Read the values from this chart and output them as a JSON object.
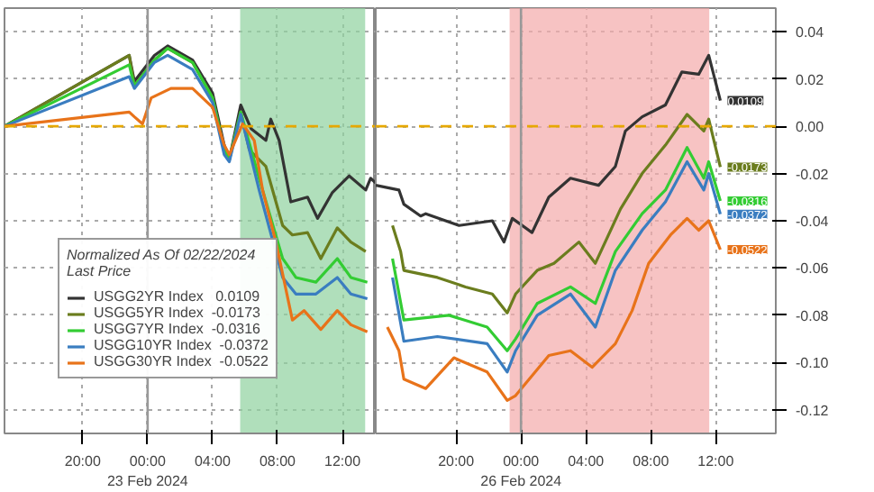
{
  "chart_data": [
    {
      "type": "line",
      "legend_title": "Normalized As Of 02/22/2024\nLast Price",
      "series": [
        {
          "name": "USGG2YR Index   0.0109",
          "color": "#333333",
          "x": [
            "2024-02-22T15:11",
            "2024-02-22T22:52",
            "2024-02-22T23:11",
            "2024-02-23T00:25",
            "2024-02-23T01:14",
            "2024-02-23T02:46",
            "2024-02-23T04:00",
            "2024-02-23T04:43",
            "2024-02-23T05:02",
            "2024-02-23T05:44",
            "2024-02-23T06:22",
            "2024-02-23T07:17",
            "2024-02-23T07:35",
            "2024-02-23T08:06",
            "2024-02-23T08:49",
            "2024-02-23T09:51",
            "2024-02-23T10:28",
            "2024-02-23T11:23",
            "2024-02-23T12:25",
            "2024-02-23T13:26",
            "2024-02-23T13:44",
            "2024-02-23T14:03"
          ],
          "values": [
            0,
            0.03,
            0.019,
            0.03,
            0.034,
            0.028,
            0.014,
            -0.008,
            -0.014,
            0.009,
            -0.001,
            -0.006,
            0.003,
            -0.006,
            -0.032,
            -0.03,
            -0.039,
            -0.028,
            -0.021,
            -0.027,
            -0.022,
            -0.024
          ]
        },
        {
          "name": "USGG5YR Index  -0.0173",
          "color": "#6b7d1e",
          "x": [
            "2024-02-22T15:11",
            "2024-02-22T22:52",
            "2024-02-22T23:11",
            "2024-02-23T00:25",
            "2024-02-23T01:14",
            "2024-02-23T02:46",
            "2024-02-23T04:00",
            "2024-02-23T04:43",
            "2024-02-23T05:02",
            "2024-02-23T05:44",
            "2024-02-23T06:16",
            "2024-02-23T07:17",
            "2024-02-23T08:19",
            "2024-02-23T08:55",
            "2024-02-23T09:51",
            "2024-02-23T10:40",
            "2024-02-23T11:41",
            "2024-02-23T12:31",
            "2024-02-23T13:26"
          ],
          "values": [
            0,
            0.03,
            0.017,
            0.028,
            0.033,
            0.027,
            0.012,
            -0.01,
            -0.014,
            0.006,
            -0.01,
            -0.017,
            -0.042,
            -0.046,
            -0.045,
            -0.056,
            -0.043,
            -0.049,
            -0.053
          ]
        },
        {
          "name": "USGG7YR Index  -0.0316",
          "color": "#33cc33",
          "x": [
            "2024-02-22T15:11",
            "2024-02-22T22:52",
            "2024-02-22T23:11",
            "2024-02-23T00:25",
            "2024-02-23T01:14",
            "2024-02-23T02:46",
            "2024-02-23T04:00",
            "2024-02-23T04:43",
            "2024-02-23T05:02",
            "2024-02-23T05:44",
            "2024-02-23T06:52",
            "2024-02-23T08:19",
            "2024-02-23T09:08",
            "2024-02-23T10:22",
            "2024-02-23T11:41",
            "2024-02-23T12:31",
            "2024-02-23T13:32"
          ],
          "values": [
            0,
            0.026,
            0.017,
            0.028,
            0.033,
            0.027,
            0.012,
            -0.01,
            -0.014,
            0.006,
            -0.022,
            -0.056,
            -0.064,
            -0.066,
            -0.056,
            -0.064,
            -0.066
          ]
        },
        {
          "name": "USGG10YR Index  -0.0372",
          "color": "#3a7dc0",
          "x": [
            "2024-02-22T15:11",
            "2024-02-22T22:52",
            "2024-02-22T23:11",
            "2024-02-23T00:25",
            "2024-02-23T01:14",
            "2024-02-23T02:46",
            "2024-02-23T04:00",
            "2024-02-23T04:43",
            "2024-02-23T05:02",
            "2024-02-23T05:44",
            "2024-02-23T06:52",
            "2024-02-23T08:19",
            "2024-02-23T09:08",
            "2024-02-23T10:22",
            "2024-02-23T11:41",
            "2024-02-23T12:31",
            "2024-02-23T13:32"
          ],
          "values": [
            0,
            0.021,
            0.016,
            0.027,
            0.03,
            0.024,
            0.01,
            -0.012,
            -0.015,
            0.005,
            -0.027,
            -0.064,
            -0.071,
            -0.071,
            -0.064,
            -0.071,
            -0.073
          ]
        },
        {
          "name": "USGG30YR Index  -0.0522",
          "color": "#e8731a",
          "x": [
            "2024-02-22T15:11",
            "2024-02-22T22:52",
            "2024-02-22T23:11",
            "2024-02-22T23:41",
            "2024-02-23T00:13",
            "2024-02-23T01:26",
            "2024-02-23T02:46",
            "2024-02-23T04:00",
            "2024-02-23T04:43",
            "2024-02-23T05:02",
            "2024-02-23T05:51",
            "2024-02-23T06:34",
            "2024-02-23T07:05",
            "2024-02-23T07:54",
            "2024-02-23T08:55",
            "2024-02-23T09:38",
            "2024-02-23T10:40",
            "2024-02-23T11:41",
            "2024-02-23T12:31",
            "2024-02-23T13:32"
          ],
          "values": [
            0,
            0.006,
            0.004,
            0.001,
            0.012,
            0.016,
            0.016,
            0.008,
            -0.008,
            -0.012,
            0.001,
            -0.006,
            -0.027,
            -0.049,
            -0.082,
            -0.078,
            -0.086,
            -0.078,
            -0.084,
            -0.087
          ]
        }
      ],
      "xlim": [
        "2024-02-22T15:11",
        "2024-02-23T14:03"
      ],
      "xticks": [
        {
          "value": "2024-02-22T20:00",
          "label": "20:00"
        },
        {
          "value": "2024-02-23T00:00",
          "label": "00:00\n23 Feb 2024"
        },
        {
          "value": "2024-02-23T04:00",
          "label": "04:00"
        },
        {
          "value": "2024-02-23T08:00",
          "label": "08:00"
        },
        {
          "value": "2024-02-23T12:00",
          "label": "12:00"
        }
      ],
      "ylim": [
        -0.13,
        0.05
      ],
      "yticks": [
        0.04,
        0.02,
        0,
        -0.02,
        -0.04,
        -0.06,
        -0.08,
        -0.1,
        -0.12
      ],
      "tick_labels": "x",
      "ref_lines": [
        {
          "axis": "y",
          "value": 0,
          "label": null,
          "color": "#e6a800",
          "line_style": "dashed"
        },
        {
          "axis": "x",
          "value": "2024-02-23T00:00",
          "label": null,
          "color": "#999999",
          "line_style": "solid"
        }
      ],
      "bands": [
        {
          "axis": "x",
          "from": "2024-02-23T05:42",
          "to": "2024-02-23T13:24",
          "label": null,
          "color": "#8fd19e"
        }
      ],
      "grid": true,
      "legend": "bottom left",
      "line_style": "solid",
      "marker": "none"
    },
    {
      "type": "line",
      "series": [
        {
          "color": "#333333",
          "x": [
            "2024-02-25T15:03",
            "2024-02-25T16:29",
            "2024-02-25T16:47",
            "2024-02-25T17:49",
            "2024-02-25T18:08",
            "2024-02-25T20:11",
            "2024-02-25T22:14",
            "2024-02-25T22:57",
            "2024-02-25T23:28",
            "2024-02-26T00:41",
            "2024-02-26T01:43",
            "2024-02-26T03:03",
            "2024-02-26T04:47",
            "2024-02-26T05:49",
            "2024-02-26T06:26",
            "2024-02-26T07:28",
            "2024-02-26T08:54",
            "2024-02-26T09:55",
            "2024-02-26T10:57",
            "2024-02-26T11:34",
            "2024-02-26T12:17"
          ],
          "values": [
            -0.025,
            -0.027,
            -0.033,
            -0.038,
            -0.037,
            -0.042,
            -0.04,
            -0.049,
            -0.039,
            -0.045,
            -0.03,
            -0.022,
            -0.025,
            -0.017,
            -0.002,
            0.004,
            0.009,
            0.023,
            0.022,
            0.03,
            0.0109
          ],
          "value_labels": [
            null,
            null,
            null,
            null,
            null,
            null,
            null,
            null,
            null,
            null,
            null,
            null,
            null,
            null,
            null,
            null,
            null,
            null,
            null,
            null,
            "0.0109"
          ]
        },
        {
          "color": "#6b7d1e",
          "x": [
            "2024-02-25T16:05",
            "2024-02-25T16:35",
            "2024-02-25T16:47",
            "2024-02-25T18:51",
            "2024-02-25T20:35",
            "2024-02-25T22:14",
            "2024-02-25T23:09",
            "2024-02-25T23:40",
            "2024-02-26T01:00",
            "2024-02-26T02:02",
            "2024-02-26T03:34",
            "2024-02-26T04:35",
            "2024-02-26T06:08",
            "2024-02-26T07:28",
            "2024-02-26T08:54",
            "2024-02-26T10:14",
            "2024-02-26T11:16",
            "2024-02-26T11:34",
            "2024-02-26T12:17"
          ],
          "values": [
            -0.042,
            -0.053,
            -0.061,
            -0.064,
            -0.068,
            -0.071,
            -0.079,
            -0.071,
            -0.061,
            -0.058,
            -0.049,
            -0.058,
            -0.035,
            -0.02,
            -0.008,
            0.005,
            -0.002,
            0.003,
            -0.0173
          ],
          "value_labels": [
            null,
            null,
            null,
            null,
            null,
            null,
            null,
            null,
            null,
            null,
            null,
            null,
            null,
            null,
            null,
            null,
            null,
            null,
            "-0.0173"
          ]
        },
        {
          "color": "#33cc33",
          "x": [
            "2024-02-25T16:05",
            "2024-02-25T16:47",
            "2024-02-25T19:34",
            "2024-02-25T21:55",
            "2024-02-25T23:09",
            "2024-02-25T23:40",
            "2024-02-26T01:00",
            "2024-02-26T03:03",
            "2024-02-26T04:35",
            "2024-02-26T05:49",
            "2024-02-26T07:28",
            "2024-02-26T08:54",
            "2024-02-26T10:14",
            "2024-02-26T11:16",
            "2024-02-26T11:34",
            "2024-02-26T12:17"
          ],
          "values": [
            -0.056,
            -0.082,
            -0.08,
            -0.085,
            -0.095,
            -0.09,
            -0.075,
            -0.068,
            -0.075,
            -0.053,
            -0.037,
            -0.027,
            -0.009,
            -0.022,
            -0.015,
            -0.0316
          ],
          "value_labels": [
            null,
            null,
            null,
            null,
            null,
            null,
            null,
            null,
            null,
            null,
            null,
            null,
            null,
            null,
            null,
            "-0.0316"
          ]
        },
        {
          "color": "#3a7dc0",
          "x": [
            "2024-02-25T16:05",
            "2024-02-25T16:47",
            "2024-02-25T18:51",
            "2024-02-25T21:55",
            "2024-02-25T23:09",
            "2024-02-25T23:40",
            "2024-02-26T01:00",
            "2024-02-26T03:03",
            "2024-02-26T04:35",
            "2024-02-26T05:49",
            "2024-02-26T07:28",
            "2024-02-26T08:54",
            "2024-02-26T10:14",
            "2024-02-26T11:16",
            "2024-02-26T11:34",
            "2024-02-26T12:17"
          ],
          "values": [
            -0.064,
            -0.091,
            -0.089,
            -0.092,
            -0.104,
            -0.095,
            -0.08,
            -0.071,
            -0.085,
            -0.061,
            -0.044,
            -0.032,
            -0.015,
            -0.027,
            -0.02,
            -0.0372
          ],
          "value_labels": [
            null,
            null,
            null,
            null,
            null,
            null,
            null,
            null,
            null,
            null,
            null,
            null,
            null,
            null,
            null,
            "-0.0372"
          ]
        },
        {
          "color": "#e8731a",
          "x": [
            "2024-02-25T15:46",
            "2024-02-25T16:29",
            "2024-02-25T16:47",
            "2024-02-25T18:08",
            "2024-02-25T19:52",
            "2024-02-25T21:55",
            "2024-02-25T23:09",
            "2024-02-25T23:40",
            "2024-02-26T01:43",
            "2024-02-26T03:03",
            "2024-02-26T04:23",
            "2024-02-26T05:49",
            "2024-02-26T06:51",
            "2024-02-26T07:52",
            "2024-02-26T09:13",
            "2024-02-26T10:14",
            "2024-02-26T10:57",
            "2024-02-26T11:34",
            "2024-02-26T12:17"
          ],
          "values": [
            -0.085,
            -0.095,
            -0.107,
            -0.111,
            -0.098,
            -0.104,
            -0.116,
            -0.114,
            -0.097,
            -0.095,
            -0.102,
            -0.092,
            -0.078,
            -0.058,
            -0.046,
            -0.039,
            -0.044,
            -0.04,
            -0.0522
          ],
          "value_labels": [
            null,
            null,
            null,
            null,
            null,
            null,
            null,
            null,
            null,
            null,
            null,
            null,
            null,
            null,
            null,
            null,
            null,
            null,
            "-0.0522"
          ]
        }
      ],
      "xlim": [
        "2024-02-25T15:03",
        "2024-02-26T15:42"
      ],
      "xticks": [
        {
          "value": "2024-02-25T20:00",
          "label": "20:00"
        },
        {
          "value": "2024-02-26T00:00",
          "label": "00:00\n26 Feb 2024"
        },
        {
          "value": "2024-02-26T04:00",
          "label": "04:00"
        },
        {
          "value": "2024-02-26T08:00",
          "label": "08:00"
        },
        {
          "value": "2024-02-26T12:00",
          "label": "12:00"
        }
      ],
      "ylim": [
        -0.13,
        0.05
      ],
      "yticks": [
        0.04,
        0.02,
        {
          "value": 0,
          "label": "0.00"
        },
        -0.02,
        -0.04,
        -0.06,
        -0.08,
        {
          "value": -0.1,
          "label": "-0.10"
        },
        -0.12
      ],
      "ref_lines": [
        {
          "axis": "y",
          "value": 0,
          "label": null,
          "color": "#e6a800",
          "line_style": "dashed"
        },
        {
          "axis": "x",
          "value": "2024-02-26T00:00",
          "label": null,
          "color": "#999999",
          "line_style": "solid"
        }
      ],
      "bands": [
        {
          "axis": "x",
          "from": "2024-02-25T23:18",
          "to": "2024-02-26T11:36",
          "label": null,
          "color": "#f4a9a9"
        }
      ],
      "grid": true,
      "line_style": "solid",
      "marker": "none"
    }
  ]
}
